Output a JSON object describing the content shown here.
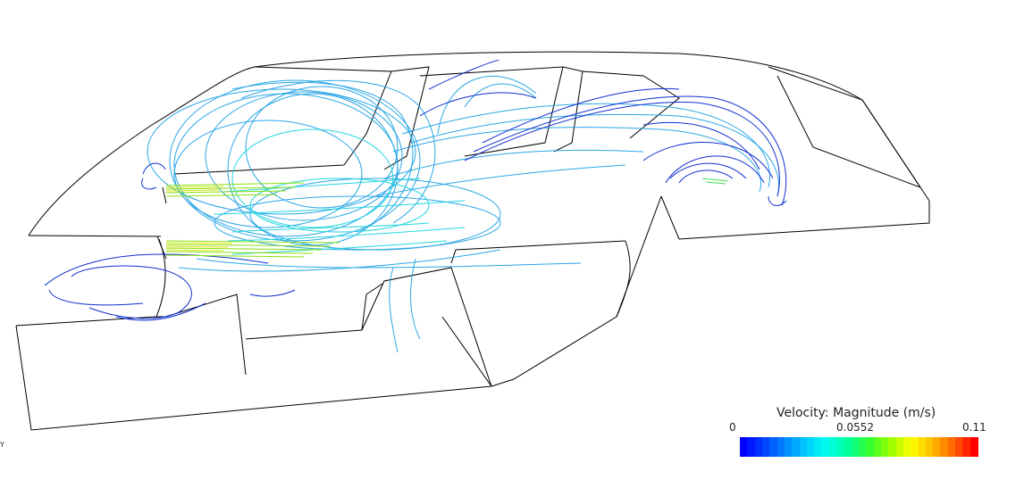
{
  "legend": {
    "title": "Velocity: Magnitude (m/s)",
    "min": "0",
    "mid": "0.0552",
    "max": "0.11",
    "colors": [
      "#0000ff",
      "#0044ff",
      "#0088ff",
      "#00ccff",
      "#00ffee",
      "#00ff99",
      "#33ff33",
      "#99ff00",
      "#ffff00",
      "#ffbb00",
      "#ff6600",
      "#ff0000"
    ]
  },
  "axis": {
    "label": "Y"
  },
  "colors": {
    "outline": "#000000",
    "slow": "#1030d0",
    "medium": "#2aa6e6",
    "cyan": "#22e6e6",
    "fast_green": "#66dd22",
    "fast_yellow": "#d8e600"
  }
}
